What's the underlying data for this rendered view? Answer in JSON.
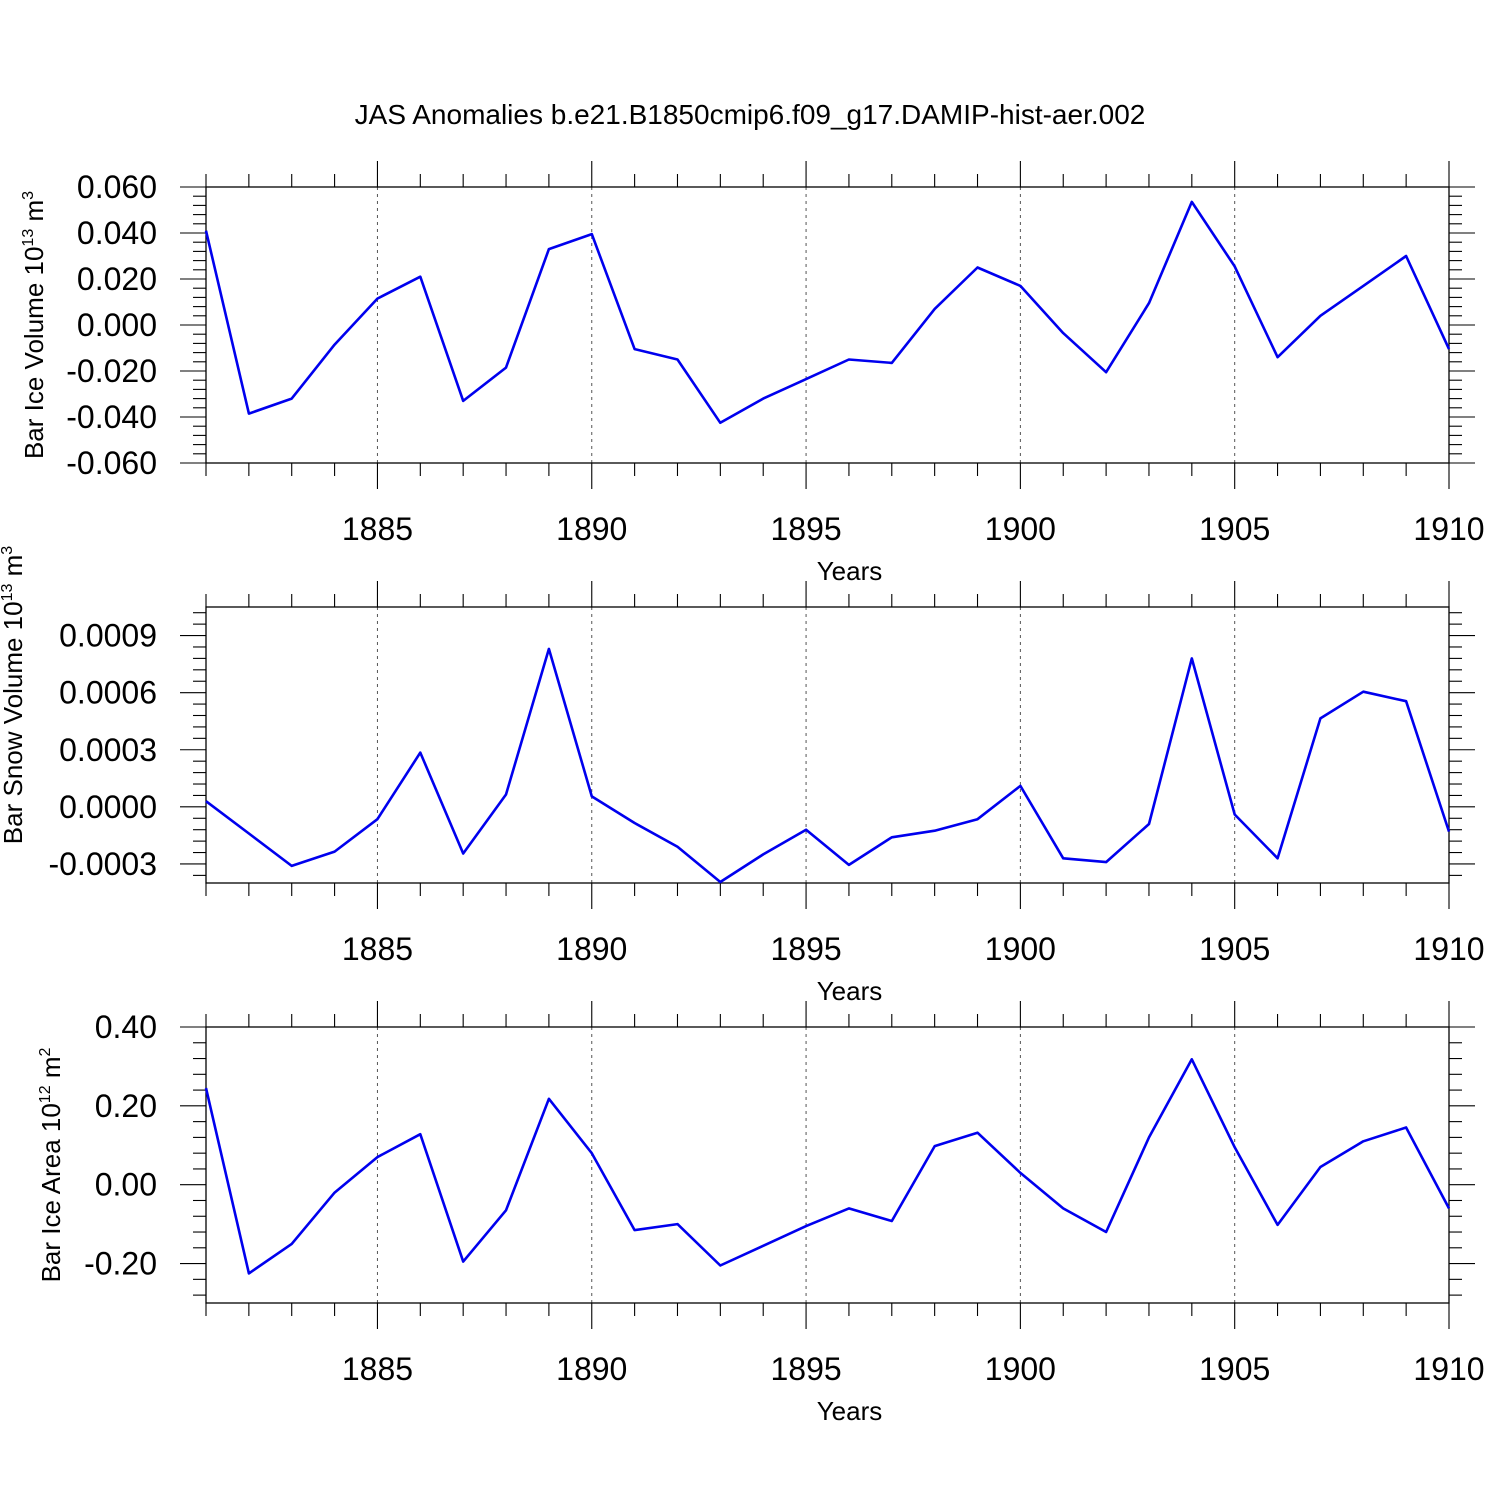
{
  "title": "JAS Anomalies b.e21.B1850cmip6.f09_g17.DAMIP-hist-aer.002",
  "colors": {
    "line": "#0000ee",
    "grid": "#555555"
  },
  "chart_data": [
    {
      "type": "line",
      "ylabel": "Bar Ice Volume 10",
      "ylabel_exp": "13",
      "ylabel_unit": " m",
      "ylabel_unit_exp": "3",
      "xlabel": "Years",
      "xlim": [
        1881,
        1910
      ],
      "ylim": [
        -0.06,
        0.06
      ],
      "yticks": [
        -0.06,
        -0.04,
        -0.02,
        0.0,
        0.02,
        0.04,
        0.06
      ],
      "ytick_labels": [
        "-0.060",
        "-0.040",
        "-0.020",
        "0.000",
        "0.020",
        "0.040",
        "0.060"
      ],
      "xticks": [
        1885,
        1890,
        1895,
        1900,
        1905,
        1910
      ],
      "xtick_labels": [
        "1885",
        "1890",
        "1895",
        "1900",
        "1905",
        "1910"
      ],
      "grid": "vertical dashed at labeled years",
      "x": [
        1881,
        1882,
        1883,
        1884,
        1885,
        1886,
        1887,
        1888,
        1889,
        1890,
        1891,
        1892,
        1893,
        1894,
        1895,
        1896,
        1897,
        1898,
        1899,
        1900,
        1901,
        1902,
        1903,
        1904,
        1905,
        1906,
        1907,
        1908,
        1909,
        1910
      ],
      "series": [
        {
          "values": [
            0.041,
            -0.0385,
            -0.032,
            -0.0085,
            0.0115,
            0.021,
            -0.033,
            -0.0185,
            0.033,
            0.0395,
            -0.0105,
            -0.015,
            -0.0425,
            -0.032,
            -0.0235,
            -0.015,
            -0.0165,
            0.007,
            0.025,
            0.017,
            -0.0035,
            -0.0205,
            0.0095,
            0.0535,
            0.0255,
            -0.014,
            0.004,
            0.017,
            0.03,
            -0.0105
          ]
        }
      ]
    },
    {
      "type": "line",
      "ylabel": "Bar Snow Volume 10",
      "ylabel_exp": "13",
      "ylabel_unit": " m",
      "ylabel_unit_exp": "3",
      "xlabel": "Years",
      "xlim": [
        1881,
        1910
      ],
      "ylim": [
        -0.0004,
        0.00105
      ],
      "yticks": [
        -0.0003,
        0.0,
        0.0003,
        0.0006,
        0.0009
      ],
      "ytick_labels": [
        "-0.0003",
        "0.0000",
        "0.0003",
        "0.0006",
        "0.0009"
      ],
      "xticks": [
        1885,
        1890,
        1895,
        1900,
        1905,
        1910
      ],
      "xtick_labels": [
        "1885",
        "1890",
        "1895",
        "1900",
        "1905",
        "1910"
      ],
      "grid": "vertical dashed at labeled years",
      "x": [
        1881,
        1882,
        1883,
        1884,
        1885,
        1886,
        1887,
        1888,
        1889,
        1890,
        1891,
        1892,
        1893,
        1894,
        1895,
        1896,
        1897,
        1898,
        1899,
        1900,
        1901,
        1902,
        1903,
        1904,
        1905,
        1906,
        1907,
        1908,
        1909,
        1910
      ],
      "series": [
        {
          "values": [
            3e-05,
            -0.00014,
            -0.00031,
            -0.000235,
            -6.5e-05,
            0.000285,
            -0.000245,
            6.5e-05,
            0.00083,
            5.5e-05,
            -8.5e-05,
            -0.00021,
            -0.000395,
            -0.00025,
            -0.00012,
            -0.000305,
            -0.00016,
            -0.000125,
            -6.5e-05,
            0.00011,
            -0.00027,
            -0.00029,
            -9e-05,
            0.00078,
            -4e-05,
            -0.00027,
            0.000465,
            0.000605,
            0.000555,
            -0.00013
          ]
        }
      ]
    },
    {
      "type": "line",
      "ylabel": "Bar Ice Area 10",
      "ylabel_exp": "12",
      "ylabel_unit": " m",
      "ylabel_unit_exp": "2",
      "xlabel": "Years",
      "xlim": [
        1881,
        1910
      ],
      "ylim": [
        -0.3,
        0.4
      ],
      "yticks": [
        -0.2,
        0.0,
        0.2,
        0.4
      ],
      "ytick_labels": [
        "-0.20",
        "0.00",
        "0.20",
        "0.40"
      ],
      "xticks": [
        1885,
        1890,
        1895,
        1900,
        1905,
        1910
      ],
      "xtick_labels": [
        "1885",
        "1890",
        "1895",
        "1900",
        "1905",
        "1910"
      ],
      "grid": "vertical dashed at labeled years",
      "x": [
        1881,
        1882,
        1883,
        1884,
        1885,
        1886,
        1887,
        1888,
        1889,
        1890,
        1891,
        1892,
        1893,
        1894,
        1895,
        1896,
        1897,
        1898,
        1899,
        1900,
        1901,
        1902,
        1903,
        1904,
        1905,
        1906,
        1907,
        1908,
        1909,
        1910
      ],
      "series": [
        {
          "values": [
            0.245,
            -0.225,
            -0.15,
            -0.02,
            0.07,
            0.128,
            -0.195,
            -0.065,
            0.218,
            0.08,
            -0.115,
            -0.1,
            -0.205,
            -0.155,
            -0.105,
            -0.06,
            -0.092,
            0.098,
            0.132,
            0.03,
            -0.06,
            -0.12,
            0.12,
            0.318,
            0.095,
            -0.102,
            0.045,
            0.11,
            0.145,
            -0.06
          ]
        }
      ]
    }
  ]
}
